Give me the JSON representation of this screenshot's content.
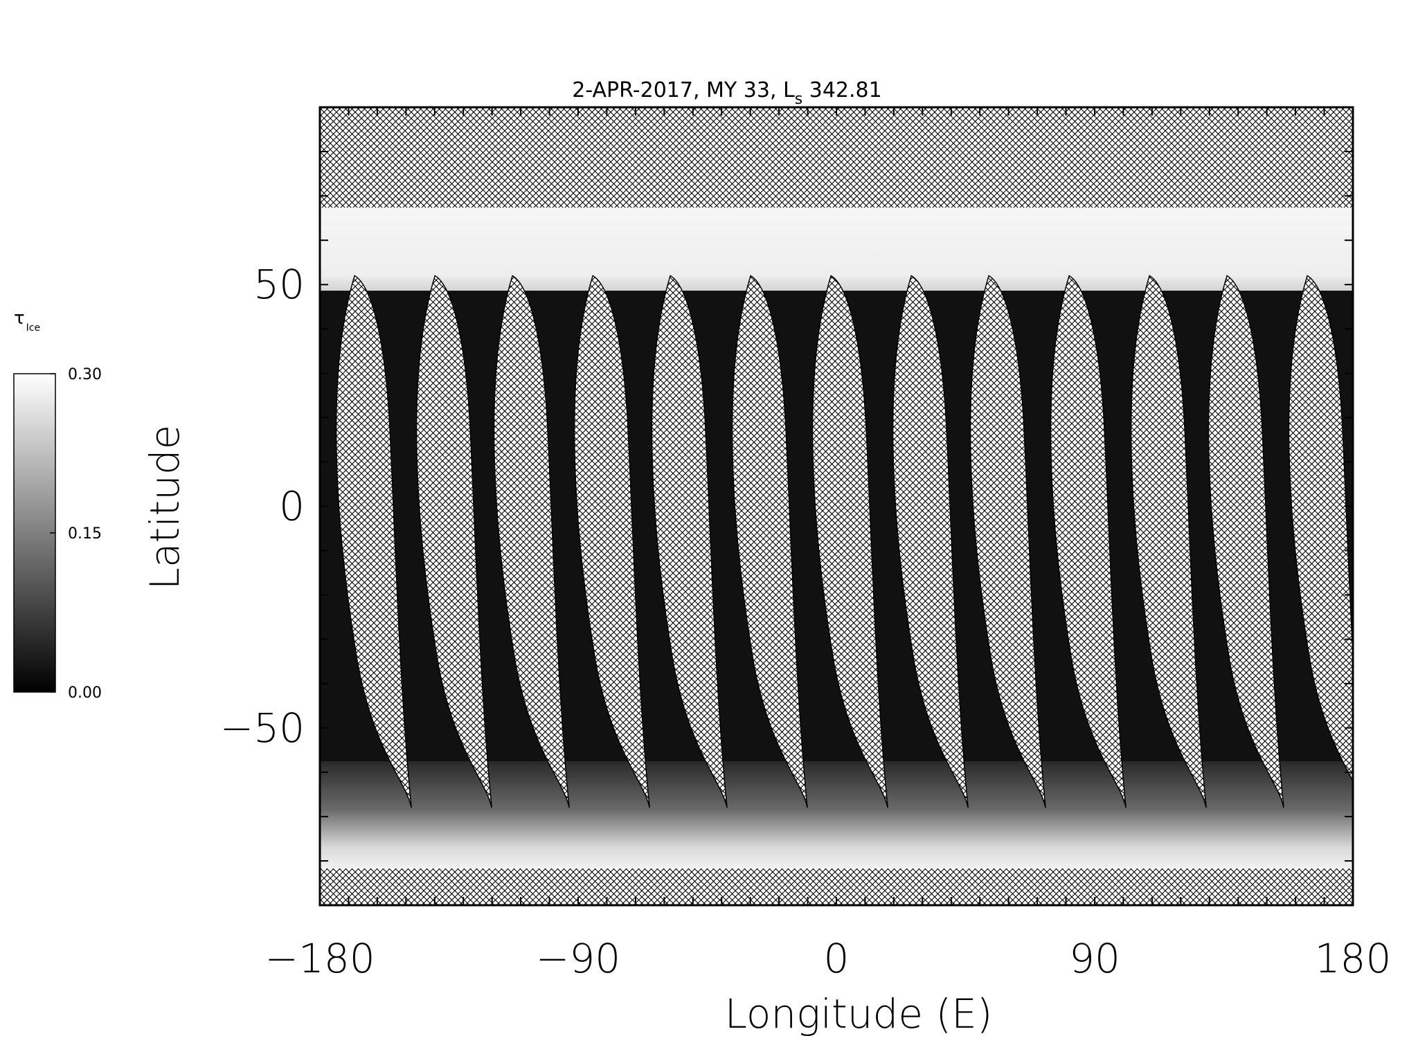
{
  "chart_data": {
    "type": "heatmap",
    "title_parts": {
      "prefix": "2-APR-2017, MY 33,  L",
      "subscript": "s",
      "suffix": " 342.81"
    },
    "xlabel": "Longitude (E)",
    "ylabel": "Latitude",
    "xlim": [
      -180,
      180
    ],
    "ylim": [
      -90,
      90
    ],
    "x_ticks": [
      -180,
      -90,
      0,
      90,
      180
    ],
    "x_tick_labels": [
      "−180",
      "−90",
      "0",
      "90",
      "180"
    ],
    "y_ticks": [
      -50,
      0,
      50
    ],
    "y_tick_labels": [
      "−50",
      "0",
      "50"
    ],
    "colorbar": {
      "label": "τ",
      "label_subscript": "Ice",
      "range": [
        0.0,
        0.3
      ],
      "tick_values": [
        0.0,
        0.15,
        0.3
      ],
      "tick_labels": [
        "0.00",
        "0.15",
        "0.30"
      ],
      "colormap": "grayscale"
    },
    "missing_data": [
      {
        "region": "north_polar",
        "lat_range": [
          68,
          90
        ]
      },
      {
        "region": "south_polar",
        "lat_range": [
          -90,
          -81
        ]
      },
      {
        "region": "orbit_gaps",
        "gap_center_lon": [
          -165,
          -137,
          -110,
          -82,
          -55,
          -27,
          1,
          29,
          56,
          84,
          112,
          139,
          167
        ]
      }
    ],
    "grid": false
  },
  "colors": {
    "background": "#ffffff",
    "low": "#0a0a0a",
    "high": "#fafafa",
    "hatch": "#000000"
  }
}
